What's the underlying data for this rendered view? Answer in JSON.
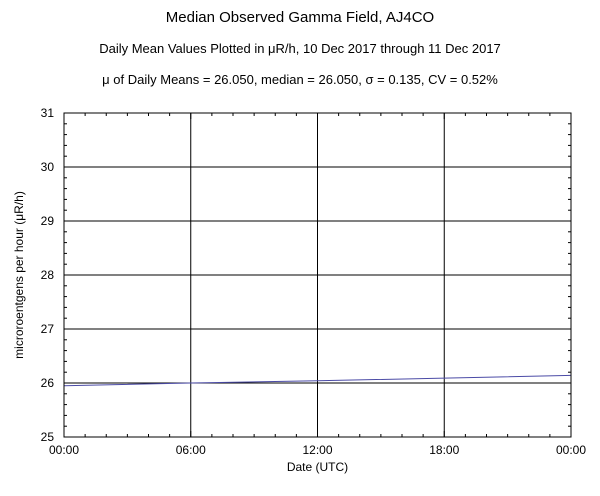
{
  "chart_data": {
    "type": "line",
    "title": "Median Observed Gamma Field, AJ4CO",
    "subtitle": "Daily Mean Values Plotted in μR/h, 10 Dec 2017 through 11 Dec 2017",
    "stats_line": "μ of Daily Means = 26.050,   median = 26.050,   σ = 0.135,   CV = 0.52%",
    "xlabel": "Date (UTC)",
    "ylabel": "microroentgens per hour (μR/h)",
    "x_tick_labels": [
      "00:00",
      "06:00",
      "12:00",
      "18:00",
      "00:00"
    ],
    "x_ticks_hours": [
      0,
      6,
      12,
      18,
      24
    ],
    "xlim_hours": [
      0,
      24
    ],
    "ylim": [
      25,
      31
    ],
    "y_ticks": [
      25,
      26,
      27,
      28,
      29,
      30,
      31
    ],
    "grid": true,
    "series": [
      {
        "color": "#4b4ba6",
        "points": [
          {
            "x": 0,
            "y": 25.95
          },
          {
            "x": 6,
            "y": 26.0
          },
          {
            "x": 12,
            "y": 26.04
          },
          {
            "x": 18,
            "y": 26.09
          },
          {
            "x": 24,
            "y": 26.14
          }
        ]
      }
    ]
  }
}
